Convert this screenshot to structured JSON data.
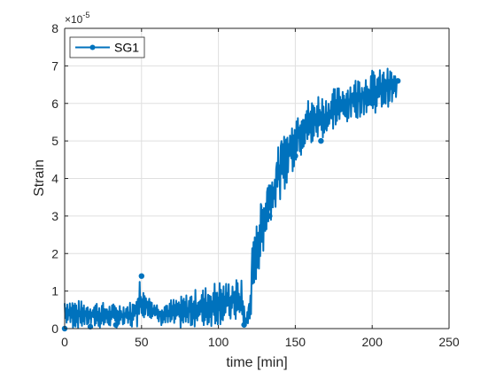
{
  "chart_data": {
    "type": "line",
    "title": "",
    "xlabel": "time [min]",
    "ylabel": "Strain",
    "y_exponent_label": "×10",
    "y_exponent_power": "-5",
    "xlim": [
      0,
      250
    ],
    "ylim": [
      0,
      8
    ],
    "x_ticks": [
      0,
      50,
      100,
      150,
      200,
      250
    ],
    "y_ticks": [
      0,
      1,
      2,
      3,
      4,
      5,
      6,
      7,
      8
    ],
    "x_tick_labels": [
      "0",
      "50",
      "100",
      "150",
      "200",
      "250"
    ],
    "y_tick_labels": [
      "0",
      "1",
      "2",
      "3",
      "4",
      "5",
      "6",
      "7",
      "8"
    ],
    "grid": true,
    "legend_position": "top-left",
    "series": [
      {
        "name": "SG1",
        "color": "#0072BD",
        "marker": "circle",
        "x": [
          0,
          16.7,
          33.3,
          50,
          66.7,
          83.3,
          100,
          116.7,
          133.3,
          150,
          166.7,
          183.3,
          200,
          216.7
        ],
        "y": [
          0.0,
          0.05,
          0.1,
          1.4,
          0.4,
          0.5,
          0.6,
          0.1,
          3.0,
          4.6,
          5.0,
          5.7,
          6.0,
          6.6
        ],
        "band_x": [
          0,
          5,
          10,
          15,
          20,
          25,
          30,
          35,
          40,
          45,
          48,
          52,
          55,
          60,
          65,
          70,
          75,
          80,
          85,
          90,
          95,
          100,
          105,
          110,
          115,
          118,
          120,
          122,
          124,
          126,
          128,
          130,
          132,
          135,
          138,
          141,
          144,
          147,
          150,
          155,
          160,
          165,
          170,
          175,
          180,
          185,
          190,
          195,
          200,
          205,
          210,
          215,
          216
        ],
        "band_low": [
          0.1,
          0.0,
          0.0,
          0.05,
          0.0,
          0.0,
          0.05,
          0.0,
          0.0,
          0.0,
          0.05,
          0.3,
          0.3,
          0.1,
          0.05,
          0.0,
          0.0,
          0.0,
          0.05,
          0.0,
          0.05,
          0.1,
          0.1,
          0.2,
          0.1,
          0.0,
          0.0,
          0.5,
          1.2,
          1.5,
          1.8,
          2.2,
          2.7,
          2.9,
          3.3,
          3.5,
          3.8,
          4.1,
          4.3,
          4.6,
          4.8,
          5.0,
          5.1,
          5.3,
          5.4,
          5.5,
          5.6,
          5.7,
          5.7,
          5.8,
          5.9,
          6.0,
          6.1
        ],
        "band_high": [
          0.85,
          0.8,
          0.75,
          0.7,
          0.75,
          0.7,
          0.65,
          0.7,
          0.7,
          0.75,
          1.4,
          1.1,
          0.9,
          0.7,
          0.75,
          0.8,
          0.85,
          0.95,
          1.05,
          1.1,
          1.2,
          1.3,
          1.25,
          1.35,
          1.3,
          0.3,
          0.8,
          2.2,
          2.6,
          3.1,
          3.4,
          3.6,
          4.0,
          4.2,
          4.8,
          5.0,
          5.3,
          5.4,
          5.8,
          6.2,
          6.1,
          6.3,
          6.2,
          6.4,
          6.5,
          6.6,
          6.7,
          6.8,
          6.9,
          6.9,
          6.95,
          6.9,
          7.0
        ]
      }
    ]
  }
}
